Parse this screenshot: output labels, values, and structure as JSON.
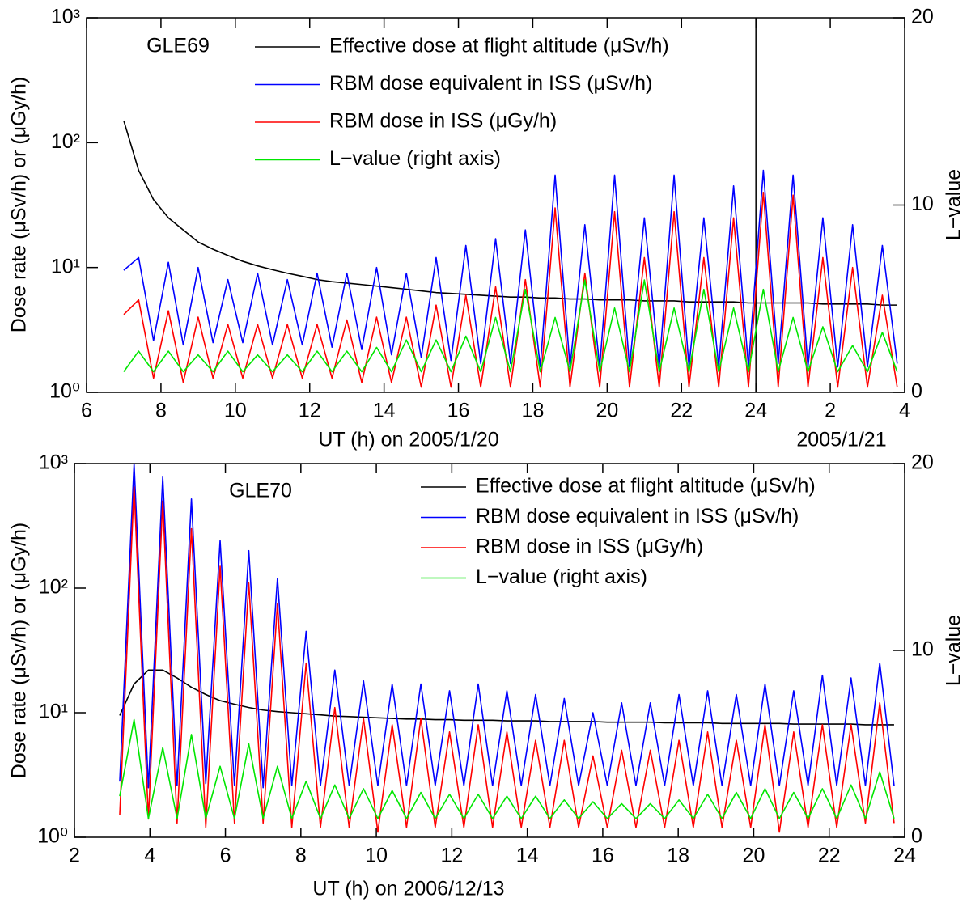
{
  "chart_data": [
    {
      "type": "line",
      "annotation": "GLE69",
      "xlabel": "UT (h) on 2005/1/20",
      "xlabel2": "2005/1/21",
      "date_boundary": 24,
      "ylabel": "Dose rate (μSv/h) or (μGy/h)",
      "y2label": "L−value",
      "log_y": true,
      "legend": "top",
      "xlim": [
        6,
        28
      ],
      "xticks": [
        6,
        8,
        10,
        12,
        14,
        16,
        18,
        20,
        22,
        24,
        {
          "value": 26,
          "label": "2"
        },
        {
          "value": 28,
          "label": "4"
        }
      ],
      "ylim": [
        1,
        1000
      ],
      "yticks": [
        {
          "value": 1,
          "label": "10⁰"
        },
        {
          "value": 10,
          "label": "10¹"
        },
        {
          "value": 100,
          "label": "10²"
        },
        {
          "value": 1000,
          "label": "10³"
        }
      ],
      "y2lim": [
        0,
        20
      ],
      "y2ticks": [
        0,
        10,
        20
      ],
      "x": [
        7,
        7.4,
        7.8,
        8.2,
        8.6,
        9,
        9.4,
        9.8,
        10.2,
        10.6,
        11,
        11.4,
        11.8,
        12.2,
        12.6,
        13,
        13.4,
        13.8,
        14.2,
        14.6,
        15,
        15.4,
        15.8,
        16.2,
        16.6,
        17,
        17.4,
        17.8,
        18.2,
        18.6,
        19,
        19.4,
        19.8,
        20.2,
        20.6,
        21,
        21.4,
        21.8,
        22.2,
        22.6,
        23,
        23.4,
        23.8,
        24.2,
        24.6,
        25,
        25.4,
        25.8,
        26.2,
        26.6,
        27,
        27.4,
        27.8
      ],
      "series": [
        {
          "name": "Effective dose at flight altitude (μSv/h)",
          "color": "#000000",
          "values": [
            150,
            60,
            35,
            25,
            20,
            16,
            14,
            12.5,
            11.2,
            10.3,
            9.6,
            9,
            8.5,
            8,
            7.7,
            7.5,
            7.3,
            7.1,
            6.9,
            6.7,
            6.5,
            6.3,
            6.2,
            6.1,
            6.0,
            5.9,
            5.8,
            5.8,
            5.7,
            5.7,
            5.6,
            5.6,
            5.5,
            5.5,
            5.5,
            5.4,
            5.4,
            5.4,
            5.3,
            5.3,
            5.3,
            5.3,
            5.2,
            5.2,
            5.2,
            5.2,
            5.2,
            5.1,
            5.1,
            5.1,
            5.1,
            5.0,
            5.0
          ]
        },
        {
          "name": "RBM dose equivalent in ISS (μSv/h)",
          "color": "#0000ff",
          "values": [
            9.5,
            12,
            2.6,
            11,
            2.4,
            10,
            2.5,
            8,
            2.5,
            9,
            2.4,
            8,
            2.4,
            9,
            2.3,
            9,
            2.2,
            10,
            2.0,
            9,
            1.9,
            12,
            1.8,
            15,
            1.7,
            17,
            1.7,
            20,
            1.6,
            55,
            1.6,
            22,
            1.6,
            55,
            1.6,
            25,
            1.6,
            55,
            1.6,
            25,
            1.6,
            45,
            1.6,
            60,
            1.7,
            55,
            1.6,
            25,
            1.6,
            22,
            1.6,
            15,
            1.7
          ]
        },
        {
          "name": "RBM dose in ISS (μGy/h)",
          "color": "#ff0000",
          "values": [
            4.2,
            5.5,
            1.3,
            4.5,
            1.2,
            4,
            1.3,
            3.5,
            1.3,
            3.5,
            1.3,
            3.5,
            1.3,
            3.5,
            1.3,
            3.8,
            1.2,
            4,
            1.2,
            4,
            1.1,
            5,
            1.1,
            6,
            1.1,
            7,
            1.1,
            8,
            1.1,
            30,
            1.1,
            9,
            1.1,
            28,
            1.1,
            12,
            1.1,
            28,
            1.1,
            12,
            1.1,
            25,
            1.1,
            40,
            1.1,
            38,
            1.1,
            12,
            1.1,
            10,
            1.1,
            6,
            1.1
          ]
        },
        {
          "name": "L−value (right axis)",
          "color": "#00e600",
          "axis": "y2",
          "values": [
            1.1,
            2.2,
            1.1,
            2.2,
            1.1,
            2.0,
            1.1,
            2.2,
            1.1,
            2.0,
            1.1,
            2.0,
            1.1,
            2.2,
            1.1,
            2.2,
            1.1,
            2.4,
            1.1,
            2.8,
            1.1,
            2.8,
            1.1,
            3.0,
            1.1,
            4.0,
            1.1,
            5.5,
            1.1,
            4.0,
            1.1,
            6.0,
            1.1,
            4.5,
            1.1,
            6.0,
            1.1,
            4.5,
            1.1,
            5.5,
            1.1,
            4.5,
            1.1,
            5.5,
            1.1,
            4.0,
            1.1,
            3.5,
            1.1,
            2.5,
            1.1,
            3.2,
            1.1
          ]
        }
      ]
    },
    {
      "type": "line",
      "annotation": "GLE70",
      "xlabel": "UT (h) on 2006/12/13",
      "ylabel": "Dose rate (μSv/h) or (μGy/h)",
      "y2label": "L−value",
      "log_y": true,
      "legend": "top-right",
      "xlim": [
        2,
        24
      ],
      "xticks": [
        2,
        4,
        6,
        8,
        10,
        12,
        14,
        16,
        18,
        20,
        22,
        24
      ],
      "ylim": [
        1,
        1000
      ],
      "yticks": [
        {
          "value": 1,
          "label": "10⁰"
        },
        {
          "value": 10,
          "label": "10¹"
        },
        {
          "value": 100,
          "label": "10²"
        },
        {
          "value": 1000,
          "label": "10³"
        }
      ],
      "y2lim": [
        0,
        20
      ],
      "y2ticks": [
        0,
        10,
        20
      ],
      "x": [
        3.2,
        3.58,
        3.96,
        4.34,
        4.72,
        5.1,
        5.48,
        5.86,
        6.24,
        6.62,
        7.0,
        7.38,
        7.76,
        8.14,
        8.52,
        8.9,
        9.28,
        9.66,
        10.04,
        10.42,
        10.8,
        11.18,
        11.56,
        11.94,
        12.32,
        12.7,
        13.08,
        13.46,
        13.84,
        14.22,
        14.6,
        14.98,
        15.36,
        15.74,
        16.12,
        16.5,
        16.88,
        17.26,
        17.64,
        18.02,
        18.4,
        18.78,
        19.16,
        19.54,
        19.92,
        20.3,
        20.68,
        21.06,
        21.44,
        21.82,
        22.2,
        22.58,
        22.96,
        23.34,
        23.72
      ],
      "series": [
        {
          "name": "Effective dose at flight altitude (μSv/h)",
          "color": "#000000",
          "values": [
            9.5,
            17,
            22,
            22,
            19,
            16,
            14,
            12.5,
            11.7,
            11,
            10.5,
            10.2,
            10,
            9.8,
            9.6,
            9.4,
            9.3,
            9.2,
            9.1,
            9.0,
            8.9,
            8.9,
            8.8,
            8.8,
            8.7,
            8.7,
            8.7,
            8.6,
            8.6,
            8.6,
            8.5,
            8.5,
            8.5,
            8.5,
            8.4,
            8.4,
            8.4,
            8.4,
            8.3,
            8.3,
            8.3,
            8.3,
            8.2,
            8.2,
            8.2,
            8.2,
            8.2,
            8.1,
            8.1,
            8.1,
            8.1,
            8.1,
            8.0,
            8.0,
            8.0
          ]
        },
        {
          "name": "RBM dose equivalent in ISS (μSv/h)",
          "color": "#0000ff",
          "values": [
            2.8,
            1000,
            2.5,
            780,
            2.6,
            520,
            2.7,
            240,
            2.6,
            200,
            2.5,
            120,
            2.6,
            45,
            2.6,
            22,
            2.6,
            18,
            2.6,
            17,
            2.6,
            17,
            2.6,
            15,
            2.6,
            17,
            2.6,
            15,
            2.6,
            14,
            2.6,
            13,
            2.6,
            10,
            2.6,
            12,
            2.6,
            12,
            2.6,
            14,
            2.6,
            15,
            2.6,
            14,
            2.6,
            17,
            2.6,
            15,
            2.6,
            20,
            2.6,
            19,
            2.6,
            25,
            2.6
          ]
        },
        {
          "name": "RBM dose in ISS  (μGy/h)",
          "color": "#ff0000",
          "values": [
            1.5,
            650,
            1.4,
            500,
            1.3,
            300,
            1.2,
            150,
            1.3,
            110,
            1.3,
            75,
            1.2,
            25,
            1.2,
            11,
            1.2,
            9,
            1.1,
            8,
            1.2,
            9,
            1.2,
            7,
            1.2,
            8,
            1.2,
            7,
            1.2,
            6,
            1.2,
            6,
            1.2,
            4.5,
            1.2,
            5,
            1.2,
            5,
            1.2,
            6,
            1.2,
            7,
            1.2,
            6,
            1.2,
            8,
            1.1,
            7,
            1.2,
            8,
            1.2,
            8,
            1.3,
            12,
            1.3
          ]
        },
        {
          "name": "L−value (right axis)",
          "color": "#00e600",
          "axis": "y2",
          "values": [
            2.2,
            6.3,
            1.0,
            4.8,
            1.0,
            5.5,
            1.0,
            3.8,
            1.0,
            5.0,
            1.0,
            3.8,
            1.0,
            3.0,
            1.0,
            2.8,
            1.0,
            2.6,
            1.0,
            2.5,
            1.0,
            2.4,
            1.0,
            2.3,
            1.0,
            2.3,
            1.0,
            2.2,
            1.0,
            2.2,
            1.0,
            2.0,
            1.0,
            1.9,
            1.0,
            1.8,
            1.0,
            1.8,
            1.0,
            2.0,
            1.0,
            2.3,
            1.0,
            2.4,
            1.0,
            2.6,
            1.0,
            2.4,
            1.0,
            2.6,
            1.0,
            2.8,
            1.0,
            3.5,
            1.0
          ]
        }
      ]
    }
  ]
}
